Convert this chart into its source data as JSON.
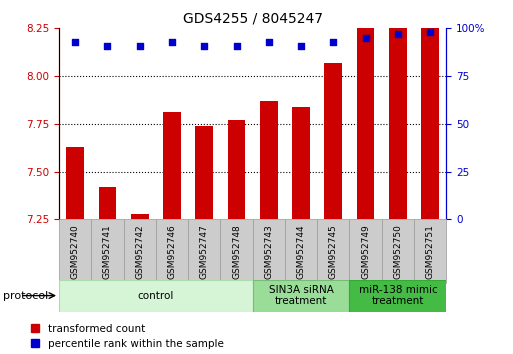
{
  "title": "GDS4255 / 8045247",
  "samples": [
    "GSM952740",
    "GSM952741",
    "GSM952742",
    "GSM952746",
    "GSM952747",
    "GSM952748",
    "GSM952743",
    "GSM952744",
    "GSM952745",
    "GSM952749",
    "GSM952750",
    "GSM952751"
  ],
  "bar_values": [
    7.63,
    7.42,
    7.28,
    7.81,
    7.74,
    7.77,
    7.87,
    7.84,
    8.07,
    8.25,
    8.25,
    8.25
  ],
  "percentile_values": [
    93,
    91,
    91,
    93,
    91,
    91,
    93,
    91,
    93,
    95,
    97,
    98
  ],
  "bar_color": "#cc0000",
  "dot_color": "#0000cc",
  "ylim_left": [
    7.25,
    8.25
  ],
  "ylim_right": [
    0,
    100
  ],
  "yticks_left": [
    7.25,
    7.5,
    7.75,
    8.0,
    8.25
  ],
  "yticks_right": [
    0,
    25,
    50,
    75,
    100
  ],
  "ytick_labels_right": [
    "0",
    "25",
    "50",
    "75",
    "100%"
  ],
  "grid_values": [
    7.5,
    7.75,
    8.0
  ],
  "groups": [
    {
      "label": "control",
      "start": 0,
      "end": 6,
      "color": "#d6f5d6",
      "edge_color": "#aaddaa"
    },
    {
      "label": "SIN3A siRNA\ntreatment",
      "start": 6,
      "end": 9,
      "color": "#99dd99",
      "edge_color": "#77bb77"
    },
    {
      "label": "miR-138 mimic\ntreatment",
      "start": 9,
      "end": 12,
      "color": "#44bb44",
      "edge_color": "#33aa33"
    }
  ],
  "bar_width": 0.55,
  "legend_labels": [
    "transformed count",
    "percentile rank within the sample"
  ],
  "legend_colors": [
    "#cc0000",
    "#0000cc"
  ],
  "title_fontsize": 10,
  "tick_fontsize": 7.5,
  "sample_fontsize": 6.5,
  "group_fontsize": 7.5,
  "legend_fontsize": 7.5
}
